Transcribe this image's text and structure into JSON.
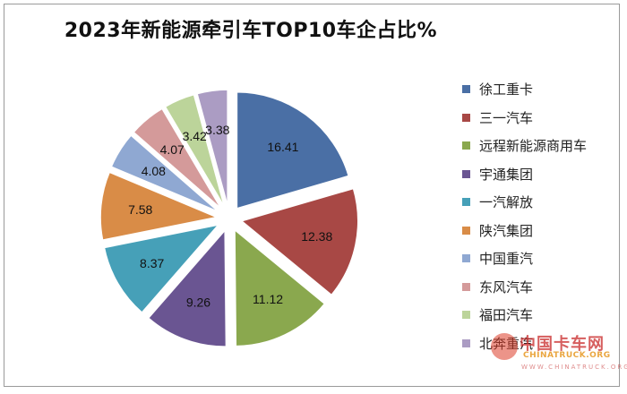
{
  "chart_data": {
    "type": "pie",
    "title": "2023年新能源牵引车TOP10车企占比%",
    "categories": [
      "徐工重卡",
      "三一汽车",
      "远程新能源商用车",
      "宇通集团",
      "一汽解放",
      "陕汽集团",
      "中国重汽",
      "东风汽车",
      "福田汽车",
      "北奔重汽"
    ],
    "values": [
      16.41,
      12.38,
      11.12,
      9.26,
      8.37,
      7.58,
      4.08,
      4.07,
      3.42,
      3.38
    ],
    "labels": [
      "16.41",
      "12.38",
      "11.12",
      "9.26",
      "8.37",
      "7.58",
      "4.08",
      "4.07",
      "3.42",
      "3.38"
    ],
    "colors": [
      "#4a6fa5",
      "#a84845",
      "#8aa84e",
      "#6a5592",
      "#46a0b8",
      "#d98c47",
      "#8fa8d2",
      "#d49a9a",
      "#bcd49a",
      "#ab9cc3"
    ],
    "legend": "right",
    "exploded": true
  },
  "watermark": {
    "title": "中国卡车网",
    "subtitle": "CHINATRUCK.ORG",
    "url": "WWW.CHINATRUCK.ORG"
  }
}
